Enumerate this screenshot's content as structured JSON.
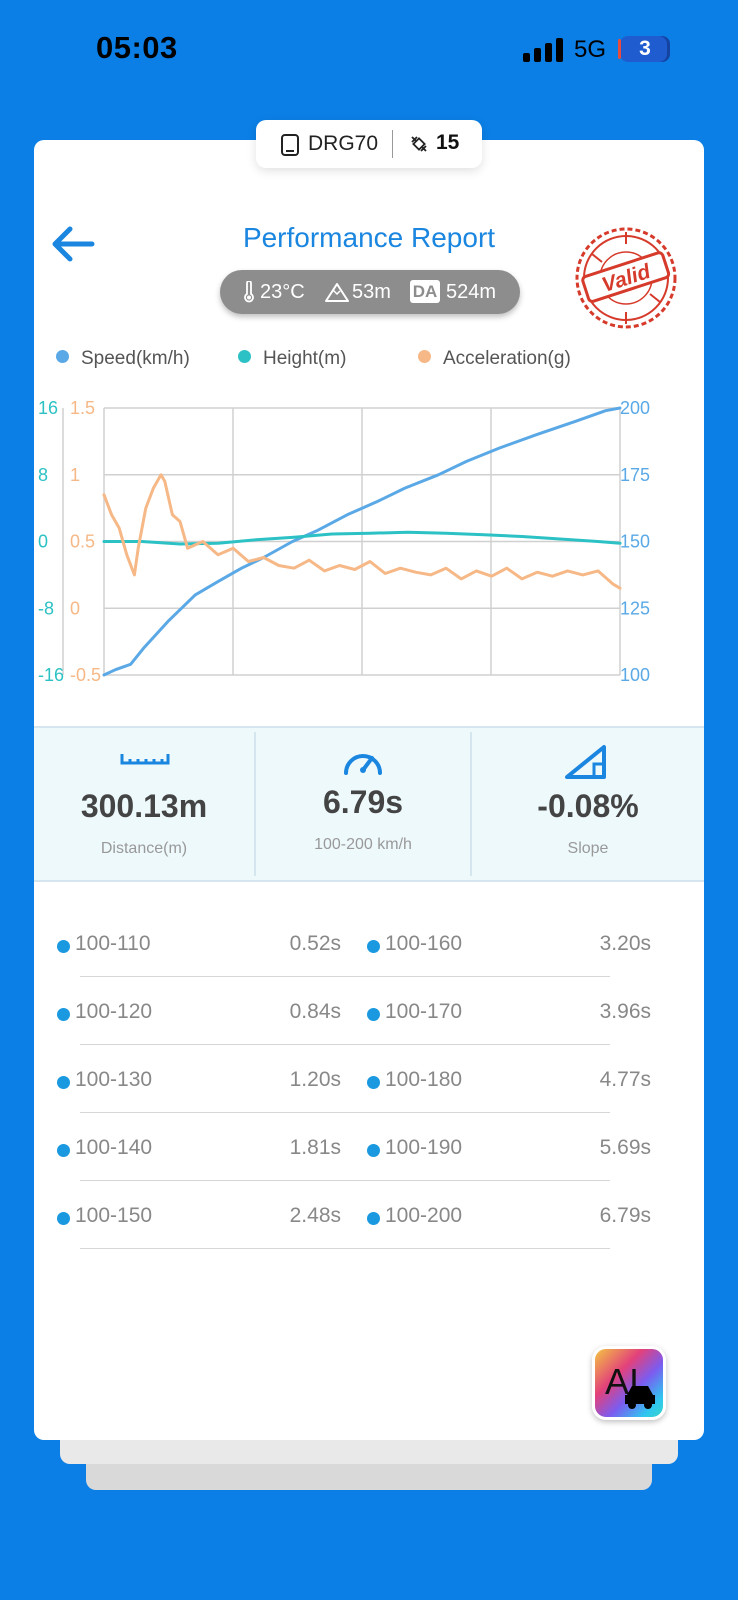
{
  "status_bar": {
    "time": "05:03",
    "network": "5G",
    "battery": "3"
  },
  "device": {
    "name": "DRG70",
    "satellites": "15"
  },
  "header": {
    "title": "Performance Report",
    "stamp_text": "Valid"
  },
  "conditions": {
    "temperature": "23°C",
    "altitude": "53m",
    "da_label": "DA",
    "density_altitude": "524m"
  },
  "legend": [
    {
      "label": "Speed(km/h)",
      "color": "#5aa9e6"
    },
    {
      "label": "Height(m)",
      "color": "#2cc1c4"
    },
    {
      "label": "Acceleration(g)",
      "color": "#f6b886"
    }
  ],
  "chart_data": {
    "type": "line",
    "x": [
      0,
      0.5,
      1.0,
      1.5,
      2.0,
      2.5,
      3.0,
      3.5,
      4.0,
      4.5,
      5.0,
      5.5,
      6.0,
      6.5,
      6.79
    ],
    "xlim": [
      0,
      6.79
    ],
    "axes": {
      "left_height": {
        "ticks": [
          "16",
          "8",
          "0",
          "-8",
          "-16"
        ],
        "ylim": [
          -16,
          16
        ],
        "color": "#2cc1c4"
      },
      "left_accel": {
        "ticks": [
          "1.5",
          "1",
          "0.5",
          "0",
          "-0.5"
        ],
        "ylim": [
          -0.5,
          1.5
        ],
        "color": "#f6b886"
      },
      "right_speed": {
        "ticks": [
          "200",
          "175",
          "150",
          "125",
          "100"
        ],
        "ylim": [
          100,
          200
        ],
        "color": "#5aa9e6"
      }
    },
    "series": [
      {
        "name": "Speed(km/h)",
        "axis": "right_speed",
        "color": "#5aa9e6",
        "x": [
          0,
          0.15,
          0.35,
          0.52,
          0.84,
          1.2,
          1.5,
          1.81,
          2.1,
          2.48,
          2.8,
          3.2,
          3.6,
          3.96,
          4.4,
          4.77,
          5.2,
          5.69,
          6.2,
          6.6,
          6.79
        ],
        "values": [
          100,
          102,
          104,
          110,
          120,
          130,
          135,
          140,
          144,
          150,
          154,
          160,
          165,
          170,
          175,
          180,
          185,
          190,
          195,
          199,
          200
        ]
      },
      {
        "name": "Height(m)",
        "axis": "left_height",
        "color": "#2cc1c4",
        "x": [
          0,
          0.5,
          1.0,
          1.5,
          2.0,
          2.5,
          3.0,
          3.5,
          4.0,
          4.5,
          5.0,
          5.5,
          6.0,
          6.5,
          6.79
        ],
        "values": [
          0,
          0,
          -0.3,
          -0.2,
          0.2,
          0.5,
          0.9,
          1.0,
          1.1,
          1.0,
          0.8,
          0.6,
          0.3,
          0,
          -0.2
        ]
      },
      {
        "name": "Acceleration(g)",
        "axis": "left_accel",
        "color": "#f6b886",
        "x": [
          0,
          0.1,
          0.2,
          0.3,
          0.4,
          0.45,
          0.55,
          0.65,
          0.75,
          0.8,
          0.9,
          1.0,
          1.1,
          1.3,
          1.5,
          1.7,
          1.9,
          2.1,
          2.3,
          2.5,
          2.7,
          2.9,
          3.1,
          3.3,
          3.5,
          3.7,
          3.9,
          4.1,
          4.3,
          4.5,
          4.7,
          4.9,
          5.1,
          5.3,
          5.5,
          5.7,
          5.9,
          6.1,
          6.3,
          6.5,
          6.7,
          6.79
        ],
        "values": [
          0.85,
          0.7,
          0.6,
          0.4,
          0.25,
          0.45,
          0.75,
          0.9,
          1.0,
          0.95,
          0.7,
          0.65,
          0.45,
          0.5,
          0.4,
          0.45,
          0.35,
          0.38,
          0.32,
          0.3,
          0.36,
          0.28,
          0.32,
          0.29,
          0.35,
          0.26,
          0.3,
          0.27,
          0.25,
          0.3,
          0.22,
          0.28,
          0.24,
          0.3,
          0.22,
          0.27,
          0.24,
          0.28,
          0.25,
          0.28,
          0.18,
          0.15
        ]
      }
    ],
    "grid": true
  },
  "stats": [
    {
      "value": "300.13m",
      "label": "Distance(m)",
      "icon": "ruler-icon"
    },
    {
      "value": "6.79s",
      "label": "100-200 km/h",
      "icon": "speedometer-icon"
    },
    {
      "value": "-0.08%",
      "label": "Slope",
      "icon": "slope-icon"
    }
  ],
  "splits": [
    {
      "name": "100-110",
      "time": "0.52s"
    },
    {
      "name": "100-160",
      "time": "3.20s"
    },
    {
      "name": "100-120",
      "time": "0.84s"
    },
    {
      "name": "100-170",
      "time": "3.96s"
    },
    {
      "name": "100-130",
      "time": "1.20s"
    },
    {
      "name": "100-180",
      "time": "4.77s"
    },
    {
      "name": "100-140",
      "time": "1.81s"
    },
    {
      "name": "100-190",
      "time": "5.69s"
    },
    {
      "name": "100-150",
      "time": "2.48s"
    },
    {
      "name": "100-200",
      "time": "6.79s"
    }
  ],
  "ai_button": {
    "label": "AI"
  }
}
